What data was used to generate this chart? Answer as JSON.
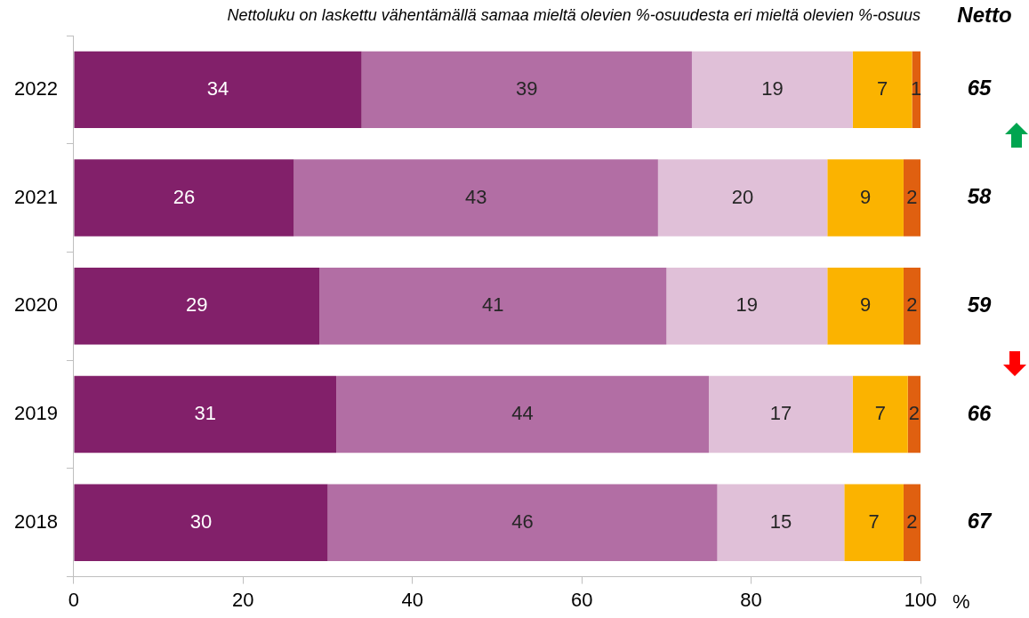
{
  "chart_data": {
    "type": "bar",
    "orientation": "horizontal",
    "stacked": true,
    "title": "Nettoluku on laskettu vähentämällä samaa mieltä olevien %-osuudesta eri mieltä olevien %-osuus",
    "xlabel": "%",
    "categories": [
      "2022",
      "2021",
      "2020",
      "2019",
      "2018"
    ],
    "series": [
      {
        "color": "#82206a",
        "values": [
          34,
          26,
          29,
          31,
          30
        ]
      },
      {
        "color": "#b26ea4",
        "values": [
          39,
          43,
          41,
          44,
          46
        ]
      },
      {
        "color": "#e0c0d8",
        "values": [
          19,
          20,
          19,
          17,
          15
        ]
      },
      {
        "color": "#fbb300",
        "values": [
          7,
          9,
          9,
          6.5,
          7
        ],
        "value_labels": [
          "7",
          "9",
          "9",
          "7",
          "7"
        ]
      },
      {
        "color": "#e06010",
        "values": [
          1,
          2,
          2,
          1.5,
          2
        ],
        "value_labels": [
          "1",
          "2",
          "2",
          "2",
          "2"
        ]
      }
    ],
    "data_labels": true,
    "xlim": [
      0,
      100
    ],
    "xticks": [
      0,
      20,
      40,
      60,
      80,
      100
    ],
    "grid": false,
    "legend": false,
    "annotations": [
      "Netto",
      "65",
      "58",
      "59",
      "66",
      "67"
    ]
  }
}
